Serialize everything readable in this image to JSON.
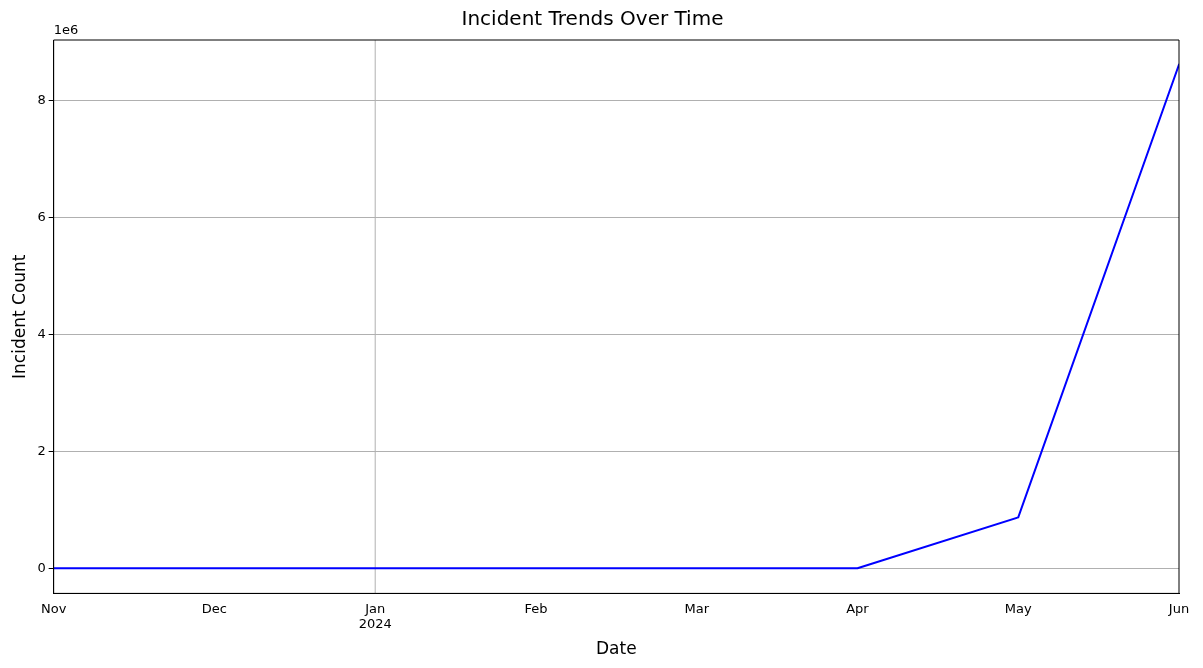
{
  "chart_data": {
    "type": "line",
    "title": "Incident Trends Over Time",
    "xlabel": "Date",
    "ylabel": "Incident Count",
    "x": [
      "2023-11",
      "2023-12",
      "2024-01",
      "2024-02",
      "2024-03",
      "2024-04",
      "2024-05",
      "2024-06"
    ],
    "series": [
      {
        "color": "#0000ff",
        "values": [
          0,
          0,
          0,
          0,
          0,
          0,
          0.87,
          8.61
        ]
      }
    ],
    "xlim": [
      "2023-11",
      "2024-06"
    ],
    "xticks": [
      {
        "value": "2023-11",
        "label": "Nov"
      },
      {
        "value": "2023-12",
        "label": "Dec"
      },
      {
        "value": "2024-01",
        "label": "Jan\n2024"
      },
      {
        "value": "2024-02",
        "label": "Feb"
      },
      {
        "value": "2024-03",
        "label": "Mar"
      },
      {
        "value": "2024-04",
        "label": "Apr"
      },
      {
        "value": "2024-05",
        "label": "May"
      },
      {
        "value": "2024-06",
        "label": "Jun"
      }
    ],
    "ylim": [
      -0.43,
      9.03
    ],
    "yticks": [
      0,
      2,
      4,
      6,
      8
    ],
    "annotations": [
      "1e6"
    ],
    "grid": "y",
    "ref_lines": [
      {
        "axis": "x",
        "value": "2024-01",
        "color": "#b0b0b0"
      }
    ],
    "legend": false,
    "marker": "none",
    "line_style": "solid"
  }
}
